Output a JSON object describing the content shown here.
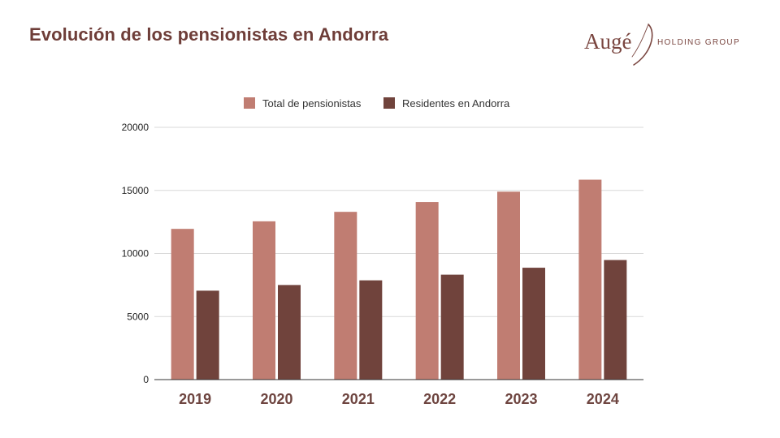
{
  "title": "Evolución de los pensionistas en Andorra",
  "logo": {
    "word": "Augé",
    "subtitle": "HOLDING GROUP"
  },
  "colors": {
    "title": "#6e3d38",
    "series_total": "#c07d72",
    "series_residents": "#70433c",
    "grid": "#d9d9d9",
    "axis": "#333333"
  },
  "chart_data": {
    "type": "bar",
    "title": "Evolución de los pensionistas en Andorra",
    "xlabel": "",
    "ylabel": "",
    "categories": [
      "2019",
      "2020",
      "2021",
      "2022",
      "2023",
      "2024"
    ],
    "series": [
      {
        "name": "Total de pensionistas",
        "color": "#c07d72",
        "values": [
          11950,
          12550,
          13300,
          14080,
          14900,
          15850
        ]
      },
      {
        "name": "Residentes en Andorra",
        "color": "#70433c",
        "values": [
          7050,
          7500,
          7870,
          8320,
          8870,
          9480
        ]
      }
    ],
    "ylim": [
      0,
      20000
    ],
    "yticks": [
      "0",
      "5000",
      "10000",
      "15000",
      "20000"
    ],
    "grid": true,
    "legend": "top-center"
  }
}
